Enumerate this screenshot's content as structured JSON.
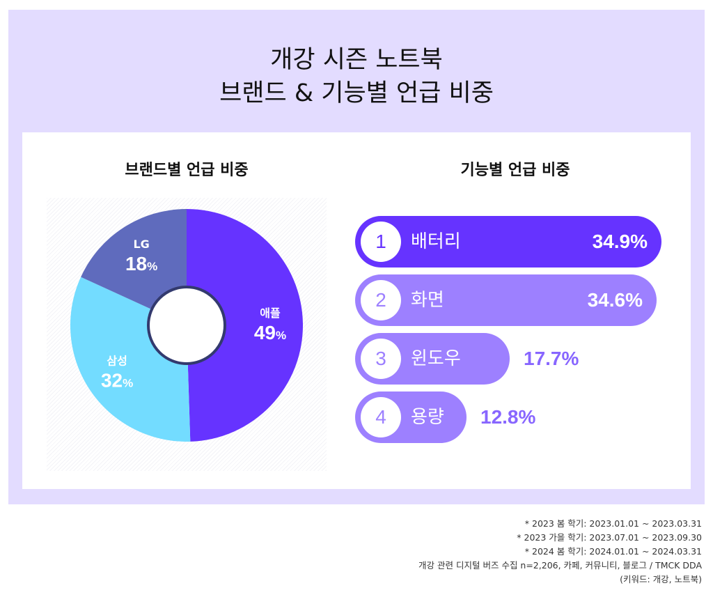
{
  "title_lines": [
    "개강 시즌 노트북",
    "브랜드 & 기능별 언급 비중"
  ],
  "chart_data": [
    {
      "type": "pie",
      "title": "브랜드별 언급 비중",
      "slices": [
        {
          "label": "애플",
          "value": 49,
          "display": "49",
          "color": "#6633ff"
        },
        {
          "label": "삼성",
          "value": 32,
          "display": "32",
          "color": "#73dcff"
        },
        {
          "label": "LG",
          "value": 18,
          "display": "18",
          "color": "#5f6bbd"
        }
      ],
      "unit": "%"
    },
    {
      "type": "bar",
      "orientation": "horizontal",
      "title": "기능별 언급 비중",
      "categories": [
        "배터리",
        "화면",
        "윈도우",
        "용량"
      ],
      "ranks": [
        "1",
        "2",
        "3",
        "4"
      ],
      "values": [
        34.9,
        34.6,
        17.7,
        12.8
      ],
      "labels": [
        "34.9%",
        "34.6%",
        "17.7%",
        "12.8%"
      ],
      "colors": [
        "#6633ff",
        "#9d80ff",
        "#9d80ff",
        "#9d80ff"
      ],
      "label_colors": [
        "#6633ff",
        "#8866ff",
        "#8866ff",
        "#8866ff"
      ]
    }
  ],
  "notes": [
    "* 2023 봄 학기: 2023.01.01 ~ 2023.03.31",
    "* 2023 가을 학기: 2023.07.01 ~ 2023.09.30",
    "* 2024 봄 학기: 2024.01.01 ~ 2024.03.31",
    "개강 관련 디지털 버즈 수집 n=2,206, 카페, 커뮤니티, 블로그 / TMCK DDA",
    "(키워드: 개강, 노트북)"
  ]
}
